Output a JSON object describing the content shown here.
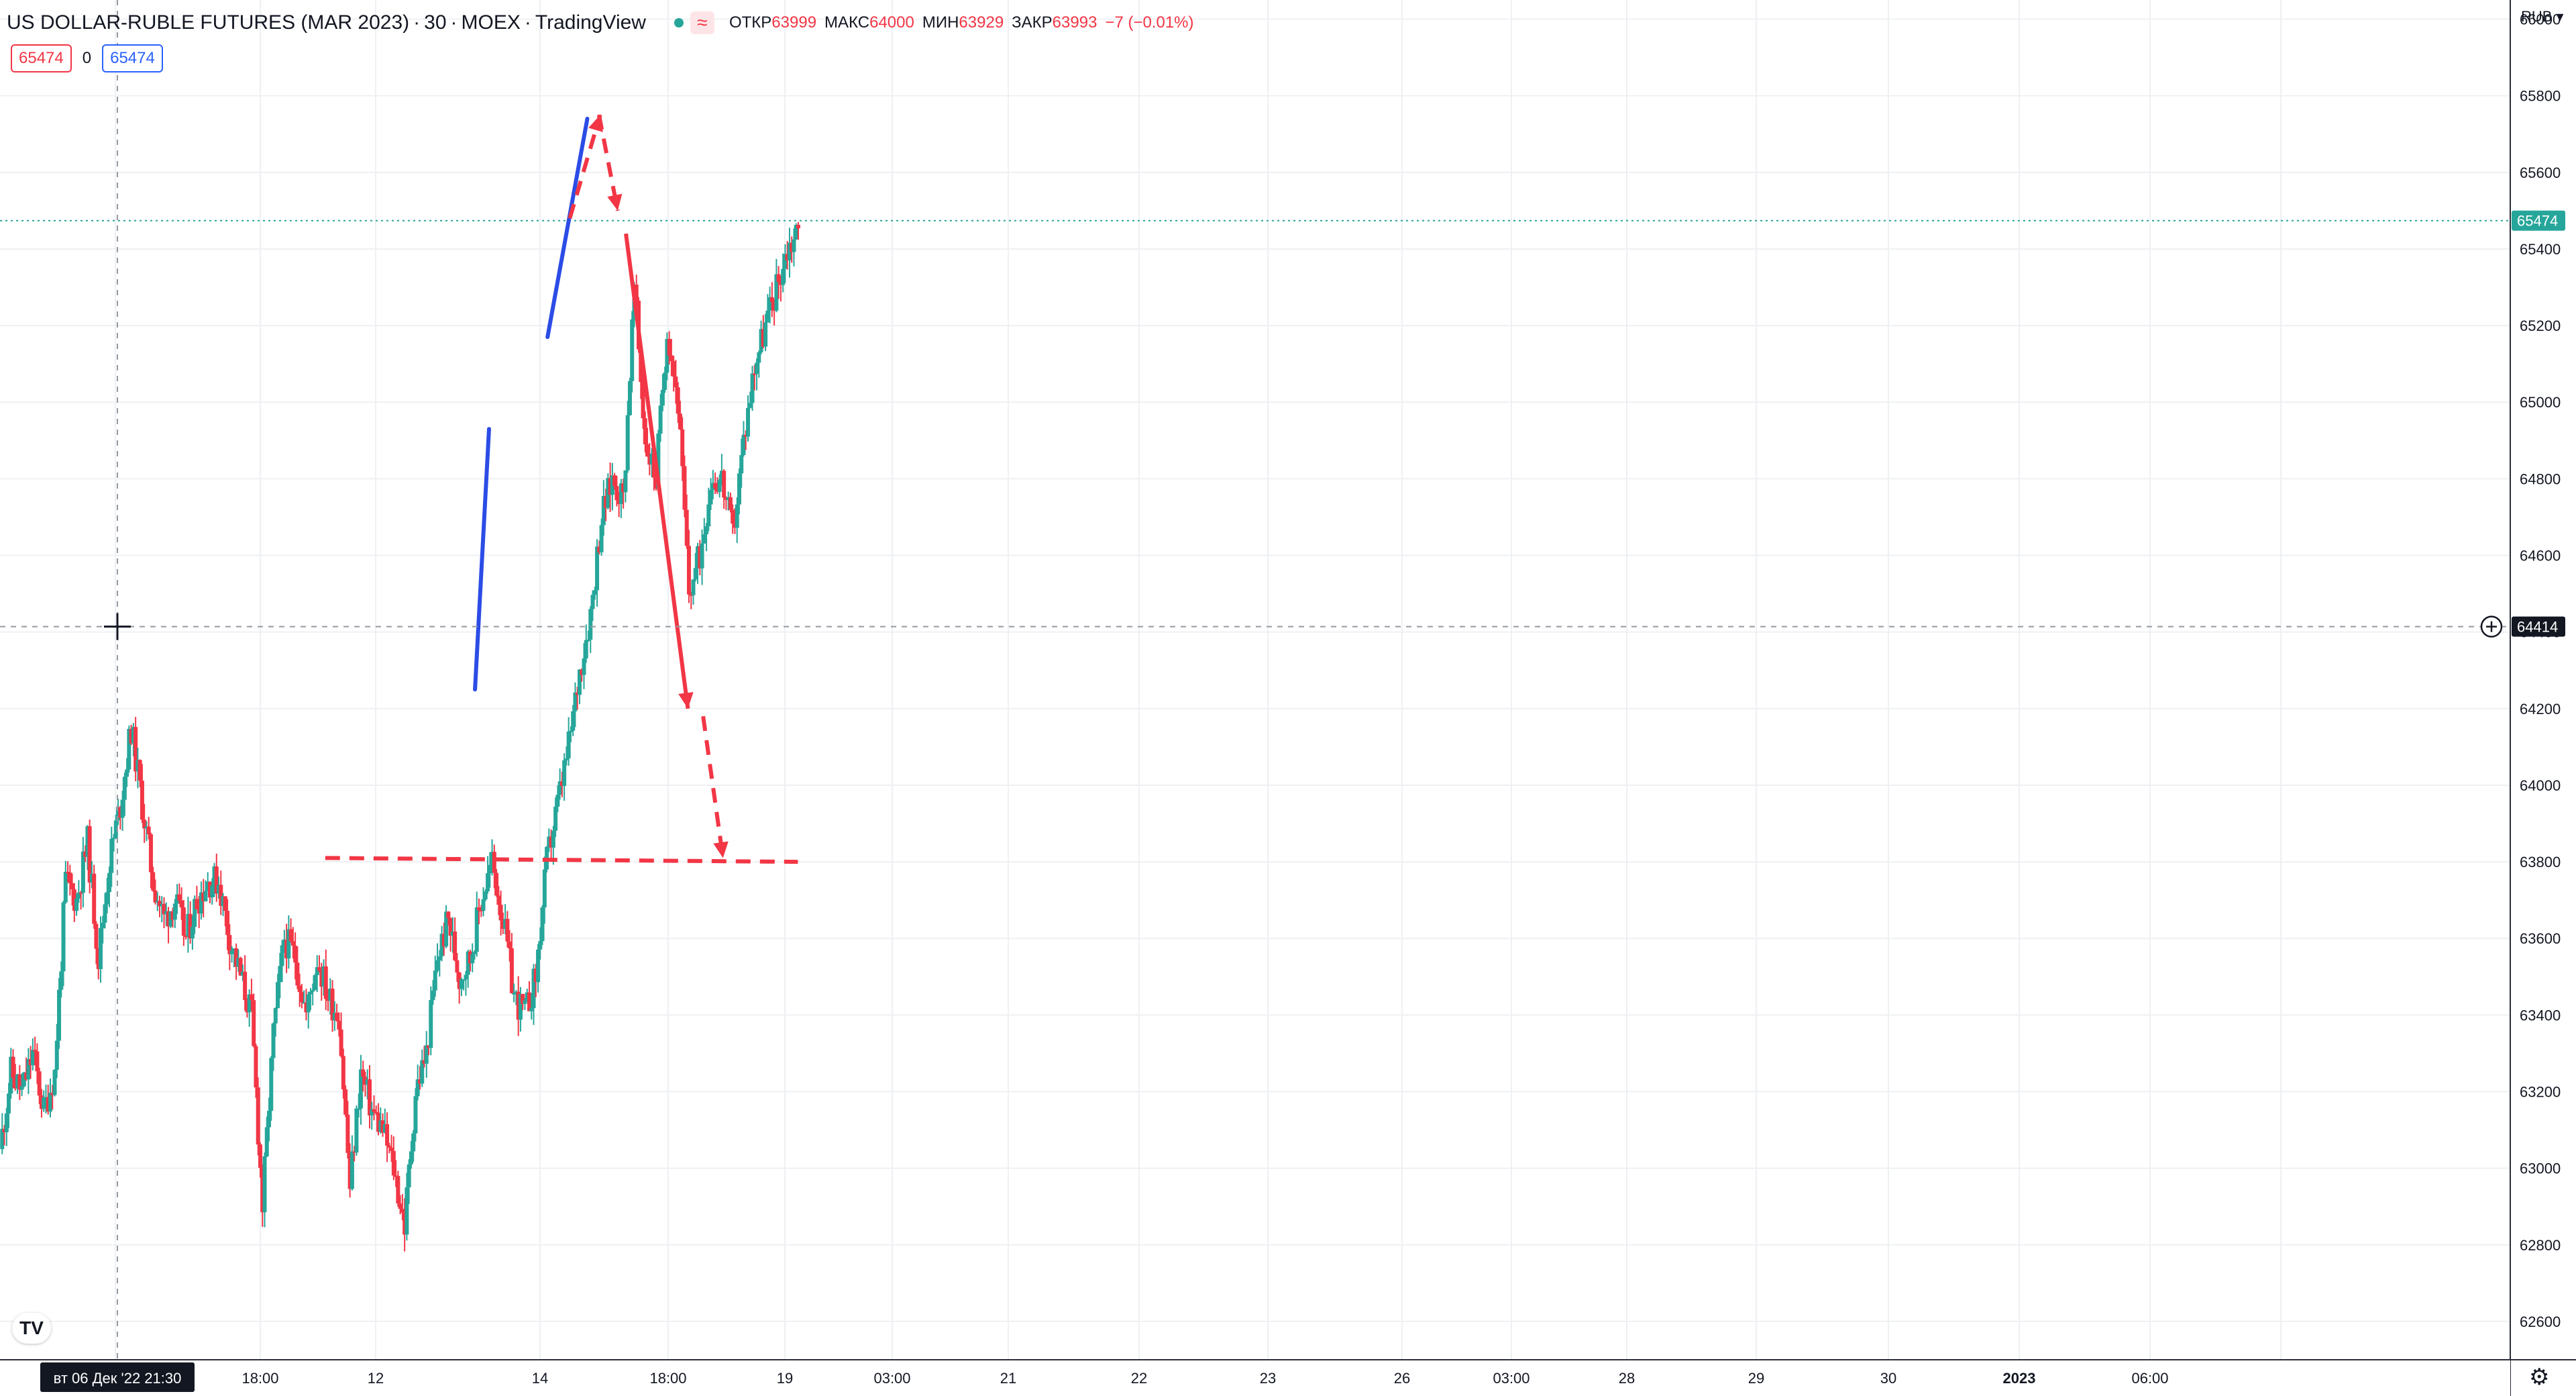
{
  "header": {
    "symbol": "US DOLLAR-RUBLE FUTURES (MAR 2023)",
    "interval": "30",
    "exchange": "MOEX",
    "source": "TradingView",
    "ohlc": [
      {
        "key": "ОТКР",
        "value": "63999"
      },
      {
        "key": "МАКС",
        "value": "64000"
      },
      {
        "key": "МИН",
        "value": "63929"
      },
      {
        "key": "ЗАКР",
        "value": "63993"
      }
    ],
    "change": "−7 (−0.01%)",
    "bid": "65474",
    "spread": "0",
    "ask": "65474",
    "currency": "RUB ▾"
  },
  "colors": {
    "up": "#26a69a",
    "down": "#f23645",
    "trend_line": "#2b4ce6",
    "annotation": "#f23645",
    "grid": "#eef0f3",
    "last_price_label": "#26a69a",
    "crosshair_label": "#131722"
  },
  "icons": {
    "status": "green-dot-icon",
    "indicator": "wave-icon",
    "logo": "tradingview-logo-icon",
    "settings": "gear-icon",
    "crosshair": "crosshair-icon",
    "add": "plus-circle-icon"
  },
  "logo_text": "TV",
  "settings_glyph": "⚙",
  "chart_data": {
    "type": "candlestick",
    "title": "US DOLLAR-RUBLE FUTURES (MAR 2023)",
    "ylabel": "RUB",
    "ylim": [
      62500,
      66050
    ],
    "y_ticks": [
      66000,
      65800,
      65600,
      65400,
      65200,
      65000,
      64800,
      64600,
      64400,
      64200,
      64000,
      63800,
      63600,
      63400,
      63200,
      63000,
      62800,
      62600
    ],
    "x_tick_labels": [
      "18:00",
      "12",
      "14",
      "18:00",
      "19",
      "03:00",
      "21",
      "22",
      "23",
      "26",
      "03:00",
      "28",
      "29",
      "30",
      "2023",
      "06:00"
    ],
    "crosshair_time_label": "вт 06 Дек '22   21:30",
    "last_price": 65474,
    "crosshair_price": 64414,
    "price_path": [
      63050,
      63250,
      63200,
      63300,
      63150,
      63250,
      63750,
      63700,
      63850,
      63550,
      63800,
      63950,
      64150,
      63950,
      63750,
      63650,
      63700,
      63600,
      63700,
      63750,
      63750,
      63600,
      63500,
      63400,
      62900,
      63350,
      63600,
      63550,
      63400,
      63550,
      63450,
      63400,
      62950,
      63250,
      63150,
      63100,
      63000,
      62850,
      63200,
      63300,
      63550,
      63650,
      63500,
      63550,
      63700,
      63800,
      63650,
      63450,
      63400,
      63500,
      63800,
      63950,
      64100,
      64300,
      64450,
      64700,
      64800,
      64750,
      65300,
      64900,
      64800,
      65200,
      65000,
      64500,
      64600,
      64800,
      64800,
      64650,
      64900,
      65100,
      65200,
      65300,
      65400,
      65450
    ],
    "trend_lines": [
      {
        "from": {
          "x": 19.8,
          "y": 64250
        },
        "to": {
          "x": 20.4,
          "y": 64930
        }
      },
      {
        "from": {
          "x": 22.9,
          "y": 65170
        },
        "to": {
          "x": 24.6,
          "y": 65740
        }
      }
    ],
    "annotations": [
      {
        "style": "dashed-arrow",
        "from": {
          "x": 23.85,
          "y": 65480
        },
        "to": {
          "x": 25.15,
          "y": 65750
        }
      },
      {
        "style": "dashed-arrow",
        "from": {
          "x": 25.1,
          "y": 65750
        },
        "to": {
          "x": 25.9,
          "y": 65500
        }
      },
      {
        "style": "solid-arrow",
        "from": {
          "x": 26.25,
          "y": 65440
        },
        "to": {
          "x": 28.9,
          "y": 64200
        }
      },
      {
        "style": "dashed-arrow",
        "from": {
          "x": 29.55,
          "y": 64180
        },
        "to": {
          "x": 30.4,
          "y": 63810
        }
      },
      {
        "style": "dashed-line",
        "from": {
          "x": 13.4,
          "y": 63810
        },
        "to": {
          "x": 33.6,
          "y": 63800
        }
      }
    ],
    "grid": true,
    "legend": "none"
  }
}
